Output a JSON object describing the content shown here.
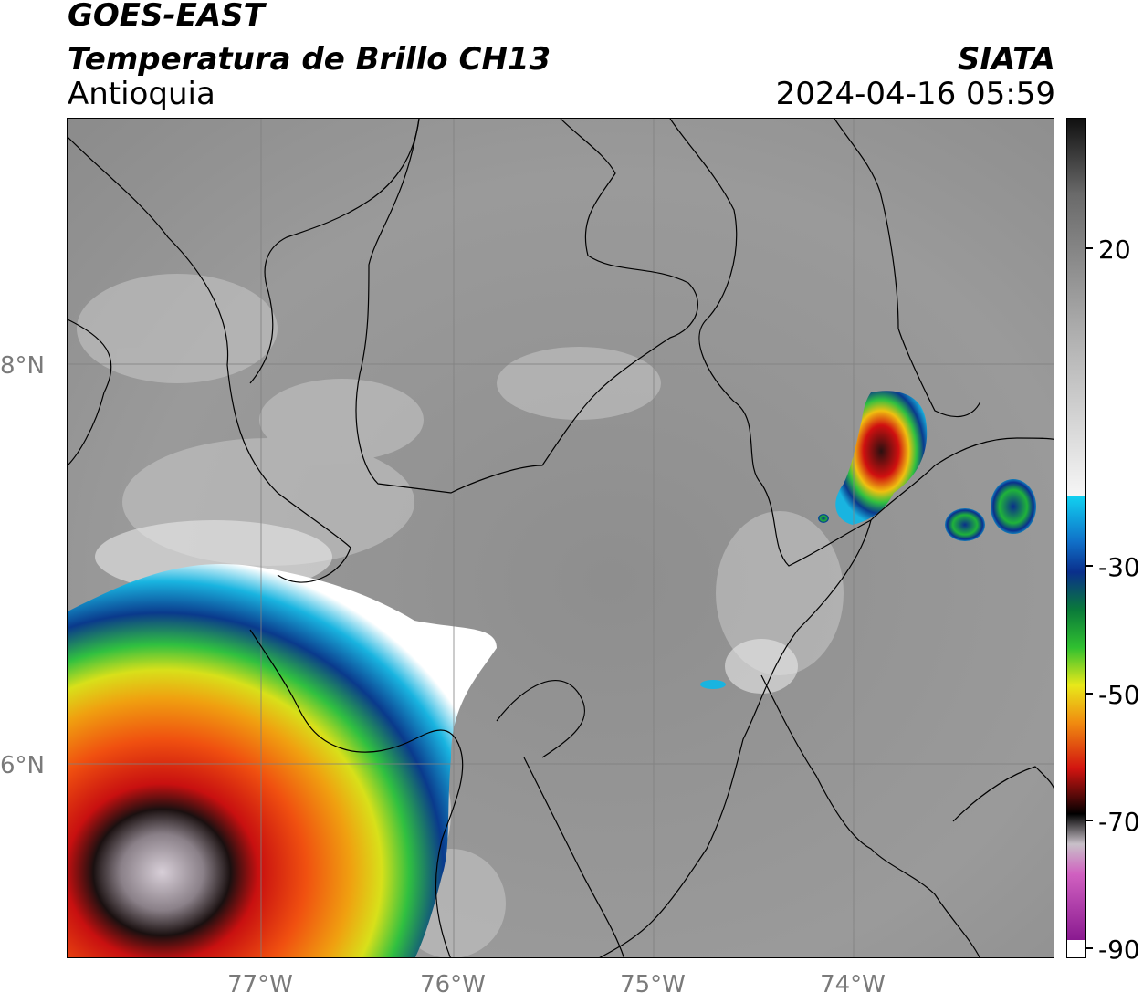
{
  "header": {
    "satellite": "GOES-EAST",
    "product": "Temperatura de Brillo CH13",
    "region": "Antioquia",
    "organization": "SIATA",
    "datetime": "2024-04-16 05:59"
  },
  "axes": {
    "latitude_labels": [
      "8°N",
      "6°N"
    ],
    "longitude_labels": [
      "77°W",
      "76°W",
      "75°W",
      "74°W"
    ]
  },
  "colorbar": {
    "labels": [
      "20",
      "-30",
      "-50",
      "-70",
      "-90"
    ],
    "colors": {
      "warm_gray_top": "#141414",
      "mid_gray": "#9a9a9a",
      "white": "#f4f4f4",
      "cyan": "#11c8e8",
      "blue": "#0a2f8c",
      "green": "#1fb33a",
      "yellow": "#e8e81a",
      "orange": "#f08a10",
      "red": "#d21410",
      "dark_red": "#5a0808",
      "black": "#000000",
      "light_gray": "#c8bfc8",
      "magenta": "#d060c0",
      "purple": "#8a1a90"
    }
  }
}
